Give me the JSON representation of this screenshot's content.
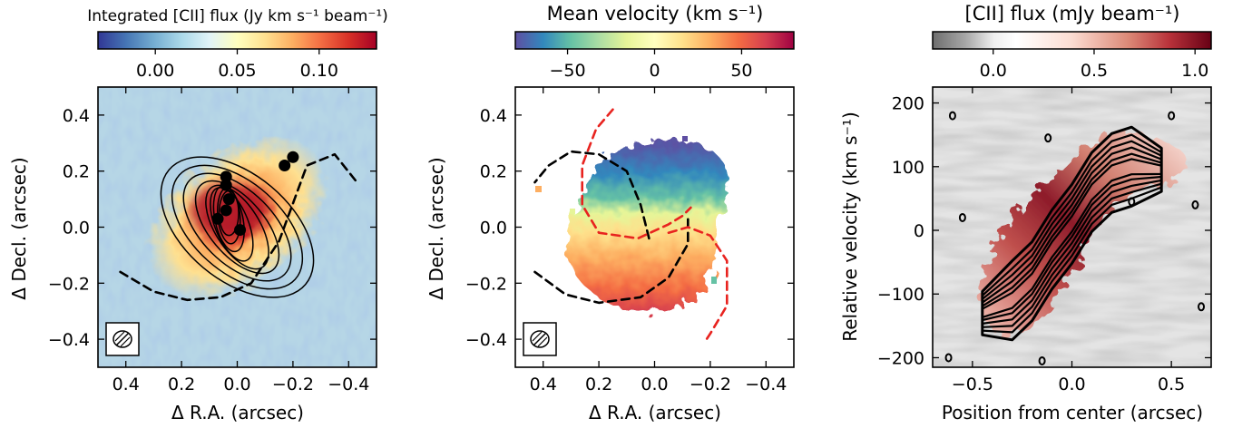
{
  "figure": {
    "panels": [
      {
        "id": "integrated-flux",
        "colorbar": {
          "title": "Integrated [CII] flux (Jy km s⁻¹ beam⁻¹)",
          "ticks": [
            "0.00",
            "0.05",
            "0.10"
          ],
          "tick_values": [
            0.0,
            0.05,
            0.1
          ],
          "range": [
            -0.035,
            0.135
          ],
          "colormap": "RdYlBu_r"
        },
        "xlabel": "Δ R.A. (arcsec)",
        "ylabel": "Δ Decl. (arcsec)",
        "xticks": [
          "0.4",
          "0.2",
          "0.0",
          "−0.2",
          "−0.4"
        ],
        "xtick_values": [
          0.4,
          0.2,
          0.0,
          -0.2,
          -0.4
        ],
        "yticks": [
          "0.4",
          "0.2",
          "0.0",
          "−0.2",
          "−0.4"
        ],
        "ytick_values": [
          0.4,
          0.2,
          0.0,
          -0.2,
          -0.4
        ]
      },
      {
        "id": "mean-velocity",
        "colorbar": {
          "title": "Mean velocity (km s⁻¹)",
          "ticks": [
            "−50",
            "0",
            "50"
          ],
          "tick_values": [
            -50,
            0,
            50
          ],
          "range": [
            -80,
            80
          ],
          "colormap": "Spectral_r"
        },
        "xlabel": "Δ R.A. (arcsec)",
        "ylabel": "Δ Decl. (arcsec)",
        "xticks": [
          "0.4",
          "0.2",
          "0.0",
          "−0.2",
          "−0.4"
        ],
        "xtick_values": [
          0.4,
          0.2,
          0.0,
          -0.2,
          -0.4
        ],
        "yticks": [
          "0.4",
          "0.2",
          "0.0",
          "−0.2",
          "−0.4"
        ],
        "ytick_values": [
          0.4,
          0.2,
          0.0,
          -0.2,
          -0.4
        ]
      },
      {
        "id": "pv-diagram",
        "colorbar": {
          "title": "[CII] flux (mJy beam⁻¹)",
          "ticks": [
            "0.0",
            "0.5",
            "1.0"
          ],
          "tick_values": [
            0.0,
            0.5,
            1.0
          ],
          "range": [
            -0.3,
            1.08
          ],
          "colormap": "gray-white-red"
        },
        "xlabel": "Position from center (arcsec)",
        "ylabel": "Relative velocity (km s⁻¹)",
        "xticks": [
          "−0.5",
          "0.0",
          "0.5"
        ],
        "xtick_values": [
          -0.5,
          0.0,
          0.5
        ],
        "yticks": [
          "200",
          "100",
          "0",
          "−100",
          "−200"
        ],
        "ytick_values": [
          200,
          100,
          0,
          -100,
          -200
        ]
      }
    ]
  },
  "chart_data": [
    {
      "type": "heatmap",
      "title": "",
      "colorbar_label": "Integrated [CII] flux (Jy km s⁻¹ beam⁻¹)",
      "xlabel": "Δ R.A. (arcsec)",
      "ylabel": "Δ Decl. (arcsec)",
      "xlim": [
        0.5,
        -0.5
      ],
      "ylim": [
        -0.5,
        0.5
      ],
      "clim": [
        -0.035,
        0.135
      ],
      "peak_position": [
        0.0,
        0.0
      ],
      "peak_value": 0.13,
      "overlays": {
        "ellipses": [
          {
            "center": [
              0.0,
              0.0
            ],
            "semi_major": 0.32,
            "semi_minor": 0.19,
            "pa_deg": -50
          },
          {
            "center": [
              0.0,
              0.0
            ],
            "semi_major": 0.28,
            "semi_minor": 0.16,
            "pa_deg": -48
          },
          {
            "center": [
              0.0,
              0.0
            ],
            "semi_major": 0.24,
            "semi_minor": 0.13,
            "pa_deg": -45
          },
          {
            "center": [
              0.0,
              0.0
            ],
            "semi_major": 0.2,
            "semi_minor": 0.1,
            "pa_deg": -40
          },
          {
            "center": [
              0.0,
              0.0
            ],
            "semi_major": 0.17,
            "semi_minor": 0.08,
            "pa_deg": -32
          },
          {
            "center": [
              0.02,
              0.01
            ],
            "semi_major": 0.14,
            "semi_minor": 0.06,
            "pa_deg": -22
          },
          {
            "center": [
              0.03,
              0.03
            ],
            "semi_major": 0.12,
            "semi_minor": 0.05,
            "pa_deg": -12
          },
          {
            "center": [
              0.03,
              0.04
            ],
            "semi_major": 0.1,
            "semi_minor": 0.04,
            "pa_deg": -5
          },
          {
            "center": [
              0.03,
              0.05
            ],
            "semi_major": 0.08,
            "semi_minor": 0.035,
            "pa_deg": 0
          }
        ],
        "points": [
          {
            "x": -0.2,
            "y": 0.25
          },
          {
            "x": -0.17,
            "y": 0.22
          },
          {
            "x": 0.04,
            "y": 0.18
          },
          {
            "x": 0.04,
            "y": 0.15
          },
          {
            "x": 0.03,
            "y": 0.1
          },
          {
            "x": 0.04,
            "y": 0.06
          },
          {
            "x": 0.07,
            "y": 0.03
          },
          {
            "x": -0.01,
            "y": -0.01
          }
        ],
        "spiral_arms": [
          {
            "style": "black-dashed",
            "x": [
              0.42,
              0.3,
              0.18,
              0.06,
              -0.05,
              -0.15,
              -0.25,
              -0.35,
              -0.43
            ],
            "y": [
              -0.16,
              -0.23,
              -0.26,
              -0.25,
              -0.2,
              -0.05,
              0.22,
              0.26,
              0.16
            ]
          }
        ]
      },
      "beam": {
        "position": "bottom-left",
        "shape": "ellipse"
      }
    },
    {
      "type": "heatmap",
      "title": "",
      "colorbar_label": "Mean velocity (km s⁻¹)",
      "xlabel": "Δ R.A. (arcsec)",
      "ylabel": "Δ Decl. (arcsec)",
      "xlim": [
        0.5,
        -0.5
      ],
      "ylim": [
        -0.5,
        0.5
      ],
      "clim": [
        -80,
        80
      ],
      "velocity_gradient": "approx. -70 km/s in the north (top) to +60 km/s in the south (bottom)",
      "overlays": {
        "spiral_arms": [
          {
            "style": "black-dashed",
            "x": [
              0.43,
              0.32,
              0.2,
              0.05,
              -0.05,
              -0.12,
              -0.12
            ],
            "y": [
              -0.16,
              -0.24,
              -0.27,
              -0.25,
              -0.18,
              -0.06,
              0.03
            ]
          },
          {
            "style": "black-dashed",
            "x": [
              0.02,
              0.05,
              0.1,
              0.2,
              0.3,
              0.38,
              0.43
            ],
            "y": [
              -0.04,
              0.08,
              0.2,
              0.26,
              0.27,
              0.22,
              0.16
            ]
          },
          {
            "style": "red-dashed",
            "x": [
              0.15,
              0.21,
              0.26,
              0.26,
              0.2,
              0.06,
              -0.05,
              -0.1,
              -0.13
            ],
            "y": [
              0.42,
              0.35,
              0.22,
              0.08,
              -0.02,
              -0.04,
              0.01,
              0.04,
              0.07
            ]
          },
          {
            "style": "red-dashed",
            "x": [
              -0.05,
              -0.12,
              -0.2,
              -0.26,
              -0.26,
              -0.2,
              -0.18
            ],
            "y": [
              -0.02,
              -0.0,
              -0.03,
              -0.12,
              -0.28,
              -0.38,
              -0.41
            ]
          }
        ]
      },
      "beam": {
        "position": "bottom-left",
        "shape": "ellipse"
      }
    },
    {
      "type": "heatmap",
      "title": "",
      "colorbar_label": "[CII] flux (mJy beam⁻¹)",
      "xlabel": "Position from center (arcsec)",
      "ylabel": "Relative velocity (km s⁻¹)",
      "xlim": [
        -0.7,
        0.7
      ],
      "ylim": [
        -215,
        225
      ],
      "clim": [
        -0.3,
        1.08
      ],
      "ridge": {
        "x": [
          -0.45,
          -0.3,
          -0.2,
          -0.1,
          0.0,
          0.1,
          0.2,
          0.3,
          0.45
        ],
        "y": [
          -130,
          -110,
          -80,
          -30,
          10,
          60,
          90,
          100,
          95
        ]
      },
      "peak_value": 1.05,
      "contours": "black, several levels"
    }
  ]
}
